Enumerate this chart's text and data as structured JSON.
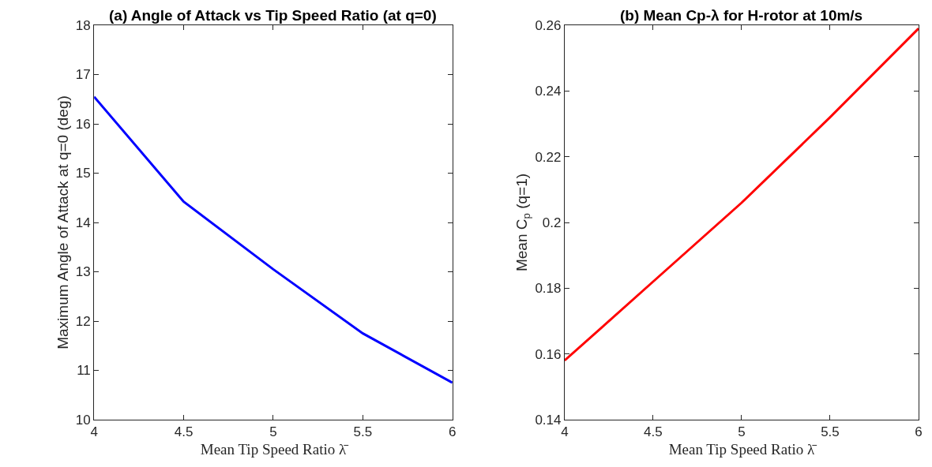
{
  "chart_data": [
    {
      "type": "line",
      "title": "(a) Angle of Attack vs Tip Speed Ratio (at q=0)",
      "xlabel": "Mean Tip Speed Ratio λ̄",
      "ylabel": "Maximum Angle of Attack at q=0 (deg)",
      "x": [
        4,
        4.5,
        5,
        5.5,
        6
      ],
      "series": [
        {
          "color": "#0000ff",
          "values": [
            16.55,
            14.42,
            13.05,
            11.75,
            10.75
          ]
        }
      ],
      "xlim": [
        4,
        6
      ],
      "xticks": [
        4,
        4.5,
        5,
        5.5,
        6
      ],
      "ylim": [
        10,
        18
      ],
      "yticks": [
        10,
        11,
        12,
        13,
        14,
        15,
        16,
        17,
        18
      ],
      "marker": "none",
      "line_style": "solid"
    },
    {
      "type": "line",
      "title": "(b) Mean Cp-λ for H-rotor at 10m/s",
      "xlabel": "Mean Tip Speed Ratio λ̄",
      "ylabel": "Mean C$_{p}$ (q=1)",
      "x": [
        4,
        4.5,
        5,
        5.5,
        6
      ],
      "series": [
        {
          "color": "#ff0000",
          "values": [
            0.158,
            0.182,
            0.206,
            0.232,
            0.259
          ]
        }
      ],
      "xlim": [
        4,
        6
      ],
      "xticks": [
        4,
        4.5,
        5,
        5.5,
        6
      ],
      "ylim": [
        0.14,
        0.26
      ],
      "yticks": [
        0.14,
        0.16,
        0.18,
        0.2,
        0.22,
        0.24,
        0.26
      ],
      "marker": "none",
      "line_style": "solid"
    }
  ]
}
